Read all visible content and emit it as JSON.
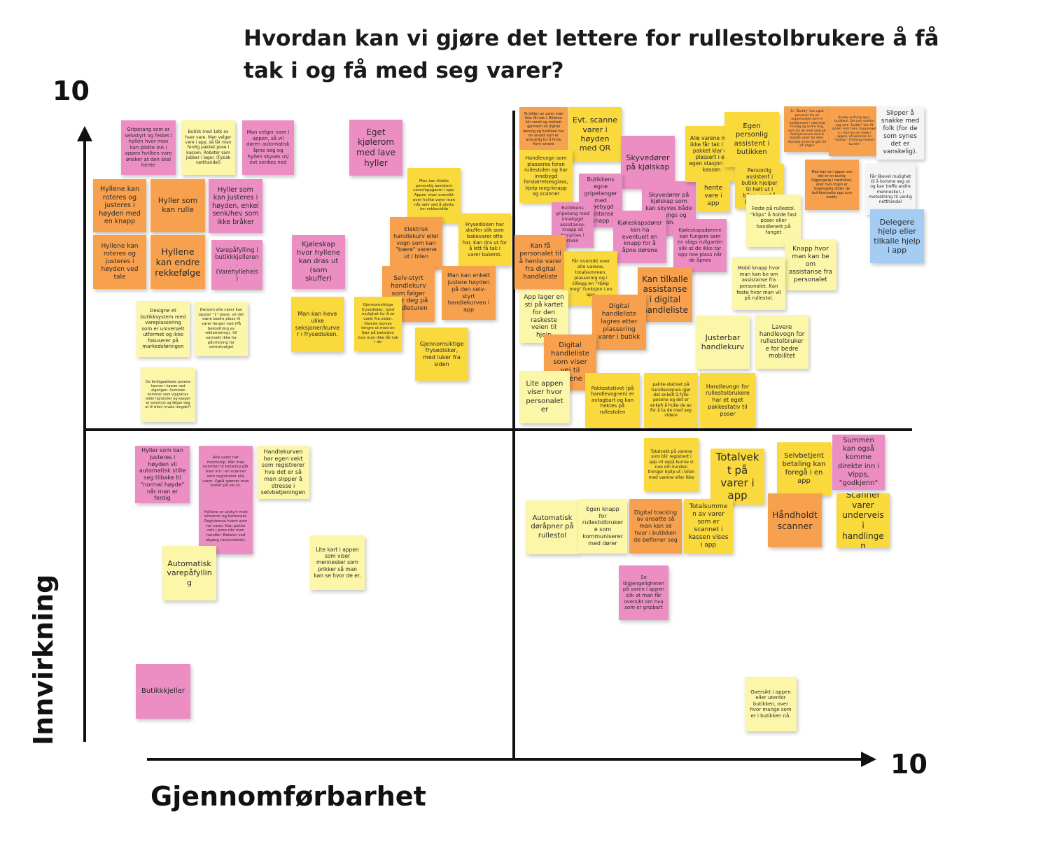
{
  "title": "Hvordan kan vi gjøre det lettere for rullestolbrukere å få tak i og få med seg varer?",
  "axes": {
    "y_max_label": "10",
    "x_max_label": "10",
    "y_label": "Innvirkning",
    "x_label": "Gjennomførbarhet"
  },
  "notes": [
    {
      "text": "Gripetang som er selvstyrt og festet i hyllen hvor man kan plotte inn i appen hvilken vare ønsker at den skal hente",
      "color": "pink"
    },
    {
      "text": "Butikk med 1stk av hver vare. Man velger vare i app, så får man ferdig pakket pose i kassen. Roboter som jobber i lager. (Fysisk netthandel)",
      "color": "lyellow"
    },
    {
      "text": "Man velger vare i appen, så vil døren automatisk åpne seg og hyllen skyves ut/ evt senkes ned",
      "color": "pink"
    },
    {
      "text": "Eget kjølerom med lave hyller",
      "color": "pink"
    },
    {
      "text": "Hyllene kan roteres og justeres i høyden med en knapp",
      "color": "orange"
    },
    {
      "text": "Hyller som kan rulle",
      "color": "orange"
    },
    {
      "text": "Hyller som kan justeres i høyden, enkel senk/hev som ikke bråker",
      "color": "pink"
    },
    {
      "text": "Hyllene kan roteres og justeres i høyden ved tale",
      "color": "orange"
    },
    {
      "text": "Hyllene kan endre rekkefølge",
      "color": "orange"
    },
    {
      "text": "Varepåfylling i butikkkjelleren. (Varehylleheis)",
      "color": "pink"
    },
    {
      "text": "Kjøleskap hvor hyllene kan dras ut (som skuffer)",
      "color": "pink"
    },
    {
      "text": "Man kan tildele personlig assistent varer/oppgaver i app. Appen viser oversikt over hvilke varer man når selv ved å plotte inn rekkevidde",
      "color": "yellow"
    },
    {
      "text": "Elektrisk handlekurv eller vogn som kan \"bære\" varene ut i bilen",
      "color": "orange"
    },
    {
      "text": "Frysedisken har skuffer slik som bakevarer ofte har. Kan dra ut for å lett få tak i varer bakerst.",
      "color": "yellow"
    },
    {
      "text": "Selv-styrt handlekurv som følger etter deg på handleturen",
      "color": "orange"
    },
    {
      "text": "Man kan enkelt justere høyden på den selv-styrt handlekurven i app",
      "color": "orange"
    },
    {
      "text": "Designe et butikksystem med vareplassering som er universelt utformet og ikke fokuserer på markedsføringen",
      "color": "lyellow"
    },
    {
      "text": "Dersom alle varer kun opptar \"1\" plass, vil det være bedre plass til varer lenger ned (På bekostning av reklamering). Vil samsett ikke ha påvirkning for vareutvalget",
      "color": "lyellow"
    },
    {
      "text": "Man kan heve ulike seksjoner/kurver i frysedisken.",
      "color": "yellow"
    },
    {
      "text": "Gjennomsiktige frysedisker, med mulighet for å se varer fra siden. Varene skyves lengre ut med en fjær på baksiden hvis man ikke får tak i de",
      "color": "yellow"
    },
    {
      "text": "Gjennomsiktige frysedisker, med luker fra siden",
      "color": "yellow"
    },
    {
      "text": "De ferdigpakkede posene havner i kasser ved utgangen. Summen kommer som vippskrav (eller lignende) og kassen er selvstyrt og følger deg ut til bilen (maks lengde?)",
      "color": "lyellow"
    },
    {
      "text": "Ta bilder av varer man ikke får tak i. Bildene blir sendt og mottatt gjennom en digital løsning og butikken har en ansatt som er ansvarlig for å finne frem varene",
      "color": "orange"
    },
    {
      "text": "Evt. scanne varer i høyden med QR",
      "color": "yellow"
    },
    {
      "text": "Handlevogn som plasseres foran rullestolen og har innebygd forstørrelsesglass, hjelp meg-knapp og scanner",
      "color": "yellow"
    },
    {
      "text": "Skyvedører på kjølskap",
      "color": "pink"
    },
    {
      "text": "Butikkens egne gripetanger med innebygd assistanse-knapp",
      "color": "pink"
    },
    {
      "text": "Butikkens gripetang med innebygd assistanse-knapp så benyttes i stokk",
      "color": "pink"
    },
    {
      "text": "Skyvedører på kjølskap som kan skyves både sidelengs og oppover",
      "color": "pink"
    },
    {
      "text": "Kjøleskapsdører kan ha eventuelt en knapp for å åpne dørene",
      "color": "pink"
    },
    {
      "text": "Kjøleskapsdørene kan fungere som en slags rullgardin slik at de ikke tar opp noe plass når de åpnes",
      "color": "pink"
    },
    {
      "text": "Alle varene man ikke får tak i blir pakket klar og plassert i en egen stasjon ved kassen",
      "color": "yellow"
    },
    {
      "text": "Egen personlig assistent i butikken",
      "color": "yellow"
    },
    {
      "text": "Personlig assistent i butikk hjelper til helt ut i bilen, med å bære varer",
      "color": "yellow"
    },
    {
      "text": "hente vare i app",
      "color": "yellow"
    },
    {
      "text": "En \"Buddy\" kan også personer fra en organisasjon som er medlemmer i nærmiljø frivillig og andre ting, som for de med nedsatt funksjonsevne med å handle varer for dem. Kanskje innen et gitt tid på dagen",
      "color": "orange"
    },
    {
      "text": "Buddy-ordning app i butikken. De som melder seg som \"buddy\" kan få goder som f.eks. kupponger o.l. Kan be om hjelp i appen, så kommer en \"buddy\". Ordning mellom kunder",
      "color": "orange"
    },
    {
      "text": "Man kan se i appen om det er en buddy tilgjengelig i nærheten, eller hvis ingen er tilgjengelig stiller de butikkansatte opp som buddy",
      "color": "orange"
    },
    {
      "text": "Slipper å snakke med folk (for de som synes det er vanskelig).",
      "color": "white"
    },
    {
      "text": "Får likevel mulighet til å komme seg ut og kan treffe andre mennesker, i motsetning til vanlig netthandel",
      "color": "white"
    },
    {
      "text": "Delegere hjelp eller tilkalle hjelp i app",
      "color": "blue"
    },
    {
      "text": "Feste på rullestol. \"klips\" å holde fast poser eller handlenett på fanget",
      "color": "lyellow"
    },
    {
      "text": "Knapp hvor man kan be om assistanse fra personalet",
      "color": "lyellow"
    },
    {
      "text": "Mobil knapp hvor man kan be om assistanse fra personalet. Kan feste hvor man vil på rullestol.",
      "color": "lyellow"
    },
    {
      "text": "Lavere handlevogn for rullestolbrukere for bedre mobilitet",
      "color": "lyellow"
    },
    {
      "text": "Justerbar handlekurv",
      "color": "lyellow"
    },
    {
      "text": "Kan få personalet til å hente varer fra digital handleliste",
      "color": "orange"
    },
    {
      "text": "Får oversikt over alle varene, totalsummen, plassering og i tillegg en \"Hjelp meg\" funksjon i en app",
      "color": "yellow"
    },
    {
      "text": "Kan tilkalle assistanse i digital handleliste",
      "color": "orange"
    },
    {
      "text": "App lager en sti på kartet for den raskeste veien til hjelp",
      "color": "lyellow"
    },
    {
      "text": "Digital handleliste lagres etter plassering varer i butikk",
      "color": "orange"
    },
    {
      "text": "Digital handleliste som viser vei til varene",
      "color": "orange"
    },
    {
      "text": "Lite appen viser hvor personalet er",
      "color": "lyellow"
    },
    {
      "text": "Pakkestativet (på handlevognen) er avtagbart og kan hektes på rullestolen",
      "color": "yellow"
    },
    {
      "text": "pakke-stativet på handlevognen gjør det enkelt å fylle posene og det er enkelt å huke de av for å ta de med seg videre",
      "color": "yellow"
    },
    {
      "text": "Handlevogn for rullestolbrukere har et eget pakkestativ til poser",
      "color": "yellow"
    },
    {
      "text": "Hyller som kan justeres i høyden vil automatisk stille seg tilbake til \"normal høyde\" når man er ferdig",
      "color": "pink"
    },
    {
      "text": "Alle varer har microship. Når man kommer til betaling går man inn i en scanner som registrerer alle varer. Også sperrer man kortet på vei ut.",
      "color": "pink"
    },
    {
      "text": "Handlekurven har egen vekt som registrerer hva det er så man slipper å stresse i selvbetjeningen",
      "color": "lyellow"
    },
    {
      "text": "Hyllene er utstyrt med sensorer og kameraer. Registreres hvem som tar varer. Kan pakke rett i pose når man handler. Betaler ved utgang (automatisk).",
      "color": "pink"
    },
    {
      "text": "Automatisk varepåfylling",
      "color": "lyellow"
    },
    {
      "text": "Lite kart i appen som viser mennesker som prikker så man kan se hvor de er.",
      "color": "lyellow"
    },
    {
      "text": "Butikkkjeller",
      "color": "pink"
    },
    {
      "text": "Totalvekt på varene som blir registrert i app vil også kunne si noe om kunden trenger hjelp ut i bilen med varene eller ikke",
      "color": "yellow"
    },
    {
      "text": "Totalvekt på varer i app",
      "color": "yellow"
    },
    {
      "text": "Selvbetjent betaling kan foregå i en app",
      "color": "yellow"
    },
    {
      "text": "Summen kan også komme direkte inn i Vipps, \"godkjenn\"",
      "color": "pink"
    },
    {
      "text": "Automatisk døråpner på rullestol",
      "color": "lyellow"
    },
    {
      "text": "Egen knapp for rullestolbrukere som kommuniserer med dører",
      "color": "lyellow"
    },
    {
      "text": "Digital tracking av ansatte så man kan se hvor i butikken de befinner seg",
      "color": "orange"
    },
    {
      "text": "Totalsummen av varer som er scannet i kassen vises i app",
      "color": "yellow"
    },
    {
      "text": "Håndholdt scanner",
      "color": "orange"
    },
    {
      "text": "Scanner varer underveis i handlingen",
      "color": "yellow"
    },
    {
      "text": "Se tilgjengeligheten på varen i appen slik at man får oversikt om hva som er gripbart",
      "color": "pink"
    },
    {
      "text": "Oversikt i appen eller utenfor butikken, over hvor mange som er i butikken nå.",
      "color": "lyellow"
    }
  ]
}
